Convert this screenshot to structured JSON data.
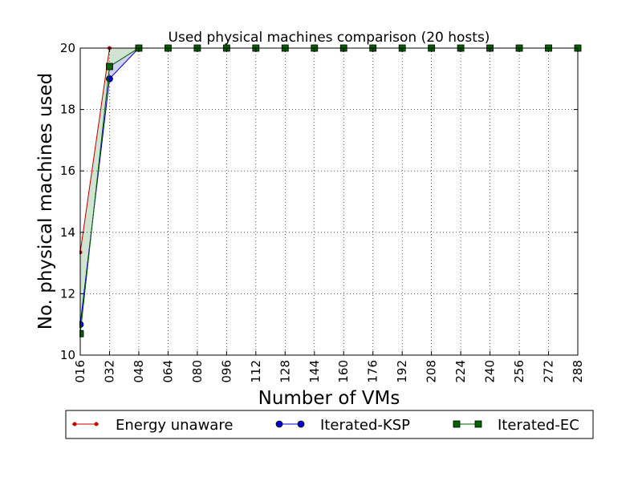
{
  "chart_data": {
    "type": "line",
    "title": "Used physical machines comparison (20 hosts)",
    "xlabel": "Number of VMs",
    "ylabel": "No. physical machines used",
    "x": [
      "016",
      "032",
      "048",
      "064",
      "080",
      "096",
      "112",
      "128",
      "144",
      "160",
      "176",
      "192",
      "208",
      "224",
      "240",
      "256",
      "272",
      "288"
    ],
    "ylim": [
      10,
      20
    ],
    "yticks": [
      "10",
      "12",
      "14",
      "16",
      "18",
      "20"
    ],
    "grid": true,
    "legend_position": "below plot",
    "series": [
      {
        "name": "Energy unaware",
        "color": "#cc0000",
        "marker": "dot",
        "values": [
          13.35,
          20.0,
          20.0,
          20.0,
          20.0,
          20.0,
          20.0,
          20.0,
          20.0,
          20.0,
          20.0,
          20.0,
          20.0,
          20.0,
          20.0,
          20.0,
          20.0,
          20.0
        ]
      },
      {
        "name": "Iterated-KSP",
        "color": "#0000cc",
        "marker": "circle",
        "values": [
          11.0,
          19.0,
          20.0,
          20.0,
          20.0,
          20.0,
          20.0,
          20.0,
          20.0,
          20.0,
          20.0,
          20.0,
          20.0,
          20.0,
          20.0,
          20.0,
          20.0,
          20.0
        ]
      },
      {
        "name": "Iterated-EC",
        "color": "#006400",
        "marker": "square",
        "values": [
          10.7,
          19.4,
          20.0,
          20.0,
          20.0,
          20.0,
          20.0,
          20.0,
          20.0,
          20.0,
          20.0,
          20.0,
          20.0,
          20.0,
          20.0,
          20.0,
          20.0,
          20.0
        ]
      }
    ],
    "fills": [
      {
        "between": [
          "Iterated-KSP",
          "Iterated-EC"
        ],
        "color": "#0000cc"
      },
      {
        "between": [
          "Energy unaware",
          "Iterated-EC"
        ],
        "color": "#006400"
      }
    ]
  }
}
